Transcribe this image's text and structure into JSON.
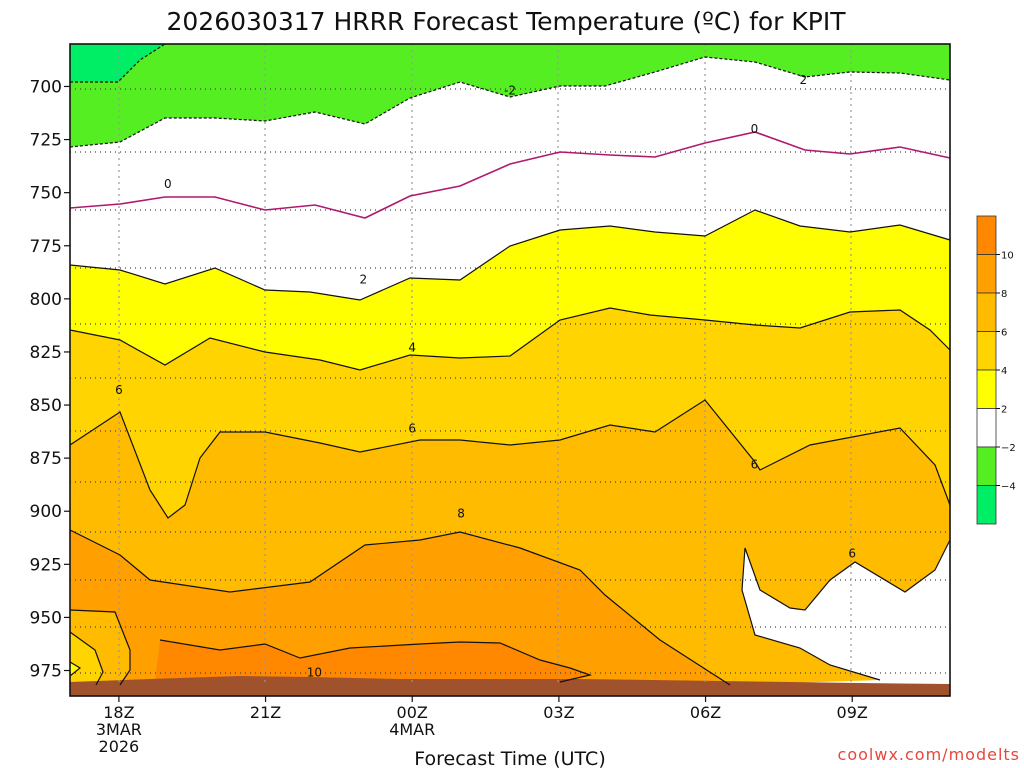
{
  "chart_data": {
    "type": "heatmap",
    "title": "2026030317 HRRR Forecast Temperature (ºC) for KPIT",
    "xlabel": "Forecast Time (UTC)",
    "ylabel": "",
    "x_ticks": [
      {
        "hour": 1,
        "lines": [
          "18Z",
          "3MAR",
          "2026"
        ]
      },
      {
        "hour": 4,
        "lines": [
          "21Z"
        ]
      },
      {
        "hour": 7,
        "lines": [
          "00Z",
          "4MAR"
        ]
      },
      {
        "hour": 10,
        "lines": [
          "03Z"
        ]
      },
      {
        "hour": 13,
        "lines": [
          "06Z"
        ]
      },
      {
        "hour": 16,
        "lines": [
          "09Z"
        ]
      }
    ],
    "xlim": [
      0,
      18
    ],
    "y_ticks": [
      700,
      725,
      750,
      775,
      800,
      825,
      850,
      875,
      900,
      925,
      950,
      975
    ],
    "ylim_hPa": [
      680,
      987
    ],
    "y_reversed": true,
    "grid": true,
    "colorbar": {
      "ticks": [
        "10",
        "8",
        "6",
        "4",
        "2",
        "−2",
        "−4"
      ],
      "levels": [
        {
          "range": [
            10,
            12
          ],
          "color": "#ff8800"
        },
        {
          "range": [
            8,
            10
          ],
          "color": "#ffa000"
        },
        {
          "range": [
            6,
            8
          ],
          "color": "#ffbb00"
        },
        {
          "range": [
            4,
            6
          ],
          "color": "#ffd400"
        },
        {
          "range": [
            2,
            4
          ],
          "color": "#ffff00"
        },
        {
          "range": [
            -2,
            2
          ],
          "color": "#ffffff"
        },
        {
          "range": [
            -4,
            -2
          ],
          "color": "#55ee22"
        },
        {
          "range": [
            -6,
            -4
          ],
          "color": "#00ee66"
        }
      ]
    },
    "contour_labels": [
      {
        "value": "-2",
        "hour": 9.0,
        "hPa": 702
      },
      {
        "value": "2",
        "hour": 15.0,
        "hPa": 697
      },
      {
        "value": "0",
        "hour": 2.0,
        "hPa": 746
      },
      {
        "value": "0",
        "hour": 14.0,
        "hPa": 720
      },
      {
        "value": "2",
        "hour": 6.0,
        "hPa": 791
      },
      {
        "value": "4",
        "hour": 7.0,
        "hPa": 823
      },
      {
        "value": "6",
        "hour": 1.0,
        "hPa": 843
      },
      {
        "value": "6",
        "hour": 7.0,
        "hPa": 861
      },
      {
        "value": "6",
        "hour": 14.0,
        "hPa": 878
      },
      {
        "value": "6",
        "hour": 16.0,
        "hPa": 920
      },
      {
        "value": "8",
        "hour": 8.0,
        "hPa": 901
      },
      {
        "value": "10",
        "hour": 5.0,
        "hPa": 976
      }
    ],
    "credit": "coolwx.com/modelts"
  }
}
